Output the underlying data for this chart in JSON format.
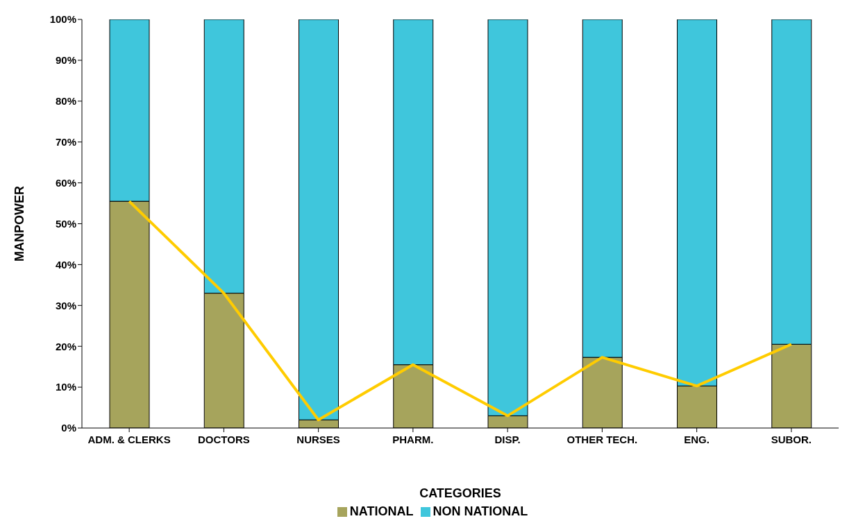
{
  "chart_data": {
    "type": "bar",
    "stacked": true,
    "xlabel": "CATEGORIES",
    "ylabel": "MANPOWER",
    "categories": [
      "ADM. & CLERKS",
      "DOCTORS",
      "NURSES",
      "PHARM.",
      "DISP.",
      "OTHER TECH.",
      "ENG.",
      "SUBOR."
    ],
    "series": [
      {
        "name": "NATIONAL",
        "color": "#a6a45c",
        "values": [
          55.5,
          33,
          2,
          15.5,
          3,
          17.3,
          10.3,
          20.5
        ]
      },
      {
        "name": "NON NATIONAL",
        "color": "#3fc6dc",
        "values": [
          44.5,
          67,
          98,
          84.5,
          97,
          82.7,
          89.7,
          79.5
        ]
      },
      {
        "type": "line",
        "color": "#ffcc00",
        "values": [
          55.5,
          33,
          2,
          15.5,
          3,
          17.3,
          10.3,
          20.5
        ]
      }
    ],
    "ylim": [
      0,
      100
    ],
    "yticks": [
      {
        "value": 0,
        "label": "0%"
      },
      {
        "value": 10,
        "label": "10%"
      },
      {
        "value": 20,
        "label": "20%"
      },
      {
        "value": 30,
        "label": "30%"
      },
      {
        "value": 40,
        "label": "40%"
      },
      {
        "value": 50,
        "label": "50%"
      },
      {
        "value": 60,
        "label": "60%"
      },
      {
        "value": 70,
        "label": "70%"
      },
      {
        "value": 80,
        "label": "80%"
      },
      {
        "value": 90,
        "label": "90%"
      },
      {
        "value": 100,
        "label": "100%"
      }
    ],
    "grid": false,
    "legend": "bottom",
    "marker": "none"
  }
}
